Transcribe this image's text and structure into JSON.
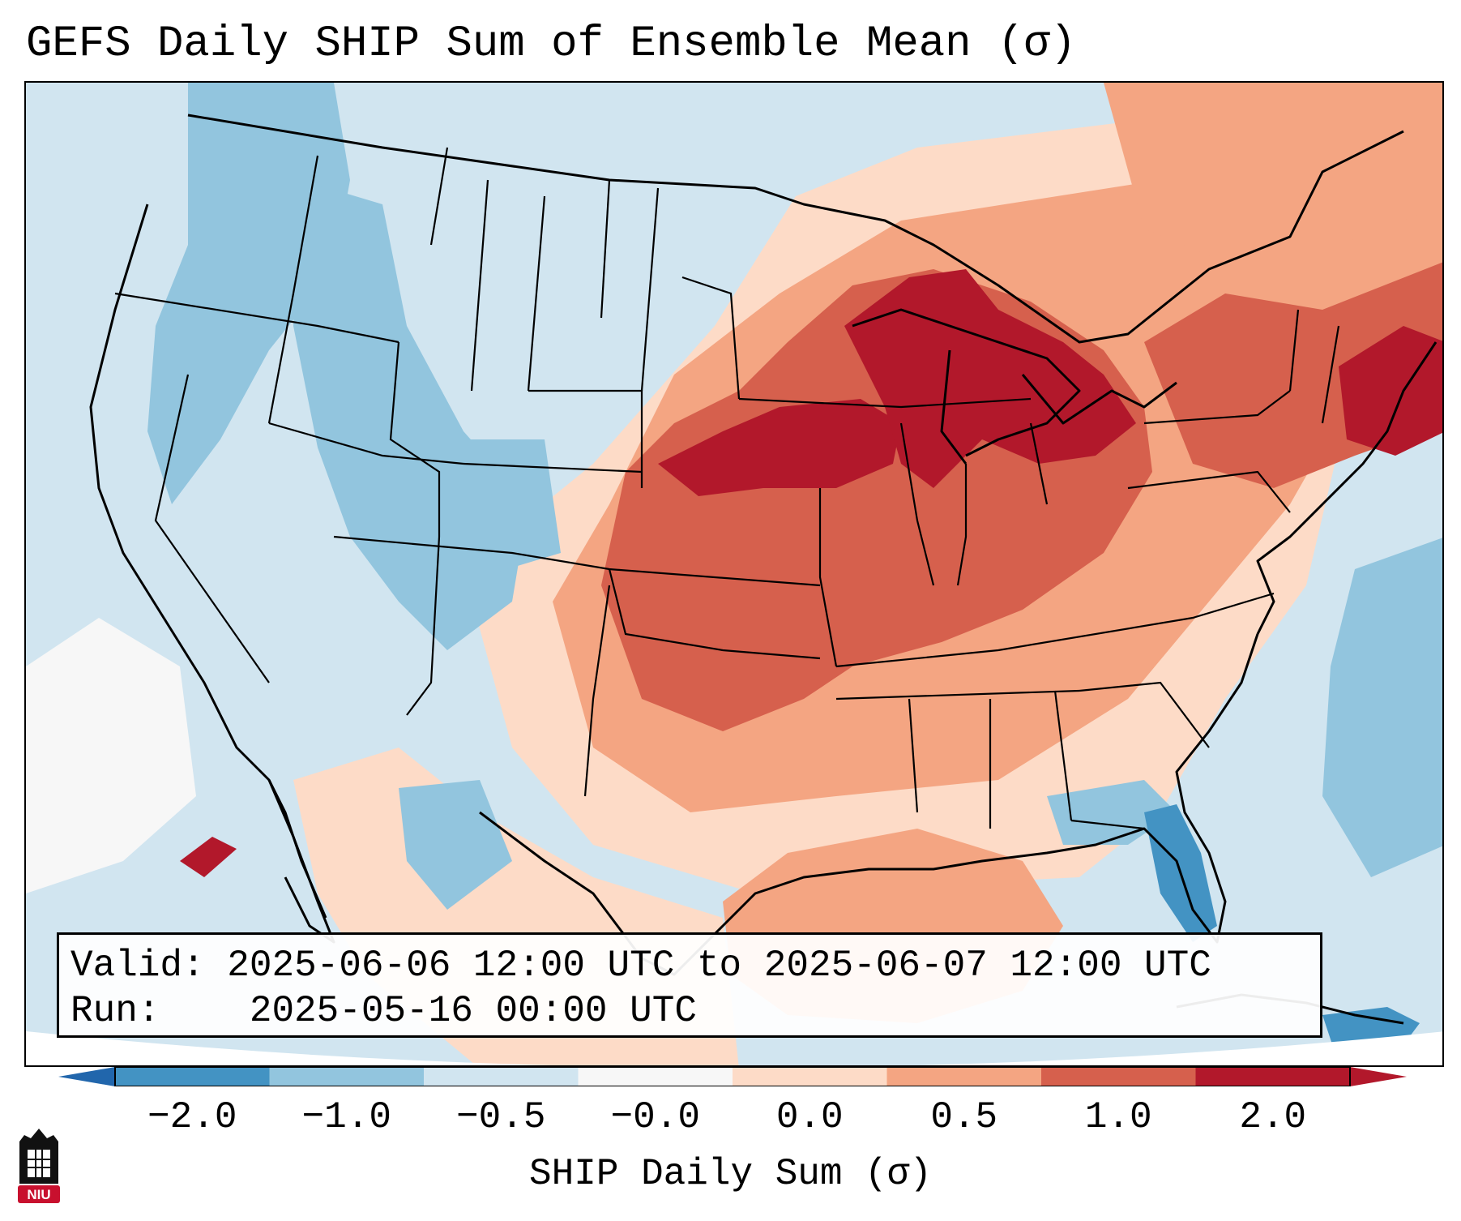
{
  "title": "GEFS Daily SHIP Sum of Ensemble Mean (σ)",
  "info": {
    "valid_label": "Valid:",
    "valid_value": "2025-06-06 12:00 UTC to 2025-06-07 12:00 UTC",
    "run_label": "Run:",
    "run_value": "2025-05-16 00:00 UTC"
  },
  "colorbar": {
    "label": "SHIP Daily Sum (σ)",
    "ticks": [
      "−2.0",
      "−1.0",
      "−0.5",
      "−0.0",
      "0.0",
      "0.5",
      "1.0",
      "2.0"
    ],
    "colors": [
      "#4393c3",
      "#92c5de",
      "#d1e5f0",
      "#f7f7f7",
      "#fddbc7",
      "#f4a582",
      "#d6604d",
      "#b2182b"
    ],
    "under_color": "#2166ac",
    "over_color": "#b2182b"
  },
  "map": {
    "background_color": "#d1e5f0",
    "anomaly_regions": [
      {
        "name": "northwest-interior",
        "level": "-1.0 to -0.5"
      },
      {
        "name": "central-rockies",
        "level": "-1.0 to -0.5"
      },
      {
        "name": "florida-peninsula",
        "level": "-2.0 to -1.0"
      },
      {
        "name": "southern-plains",
        "level": "0.5 to 1.0"
      },
      {
        "name": "iowa-nebraska-great-lakes",
        "level": "1.0 to 2.0"
      },
      {
        "name": "new-england",
        "level": "1.0 to 2.0"
      },
      {
        "name": "gulf-of-mexico",
        "level": "0.0 to 0.5"
      }
    ]
  },
  "logo": {
    "text": "NIU",
    "color": "#c8102e"
  }
}
